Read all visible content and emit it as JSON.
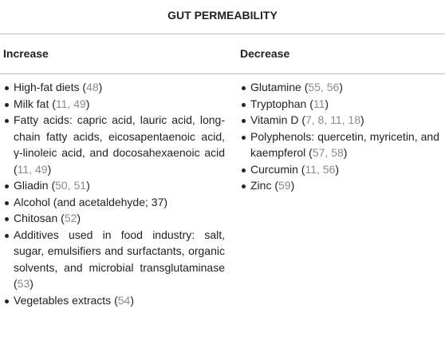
{
  "title": "GUT PERMEABILITY",
  "columns": [
    {
      "heading": "Increase",
      "items": [
        [
          "High-fat diets (",
          {
            "ref": "48"
          },
          ")"
        ],
        [
          "Milk fat (",
          {
            "ref": "11, 49"
          },
          ")"
        ],
        [
          "Fatty acids: capric acid, lauric acid, long-chain fatty acids, eicosapentaenoic acid, γ-linoleic acid, and docosahexaenoic acid (",
          {
            "ref": "11, 49"
          },
          ")"
        ],
        [
          "Gliadin (",
          {
            "ref": "50, 51"
          },
          ")"
        ],
        [
          "Alcohol (and acetaldehyde; 37)"
        ],
        [
          "Chitosan (",
          {
            "ref": "52"
          },
          ")"
        ],
        [
          "Additives used in food industry: salt, sugar, emulsifiers and surfactants, organic solvents, and microbial transglutaminase (",
          {
            "ref": "53"
          },
          ")"
        ],
        [
          "Vegetables extracts (",
          {
            "ref": "54"
          },
          ")"
        ]
      ]
    },
    {
      "heading": "Decrease",
      "items": [
        [
          "Glutamine (",
          {
            "ref": "55, 56"
          },
          ")"
        ],
        [
          "Tryptophan (",
          {
            "ref": "11"
          },
          ")"
        ],
        [
          "Vitamin D (",
          {
            "ref": "7, 8, 11, 18"
          },
          ")"
        ],
        [
          "Polyphenols: quercetin, myricetin, and kaempferol (",
          {
            "ref": "57, 58"
          },
          ")"
        ],
        [
          "Curcumin (",
          {
            "ref": "11, 56"
          },
          ")"
        ],
        [
          "Zinc (",
          {
            "ref": "59"
          },
          ")"
        ]
      ]
    }
  ]
}
